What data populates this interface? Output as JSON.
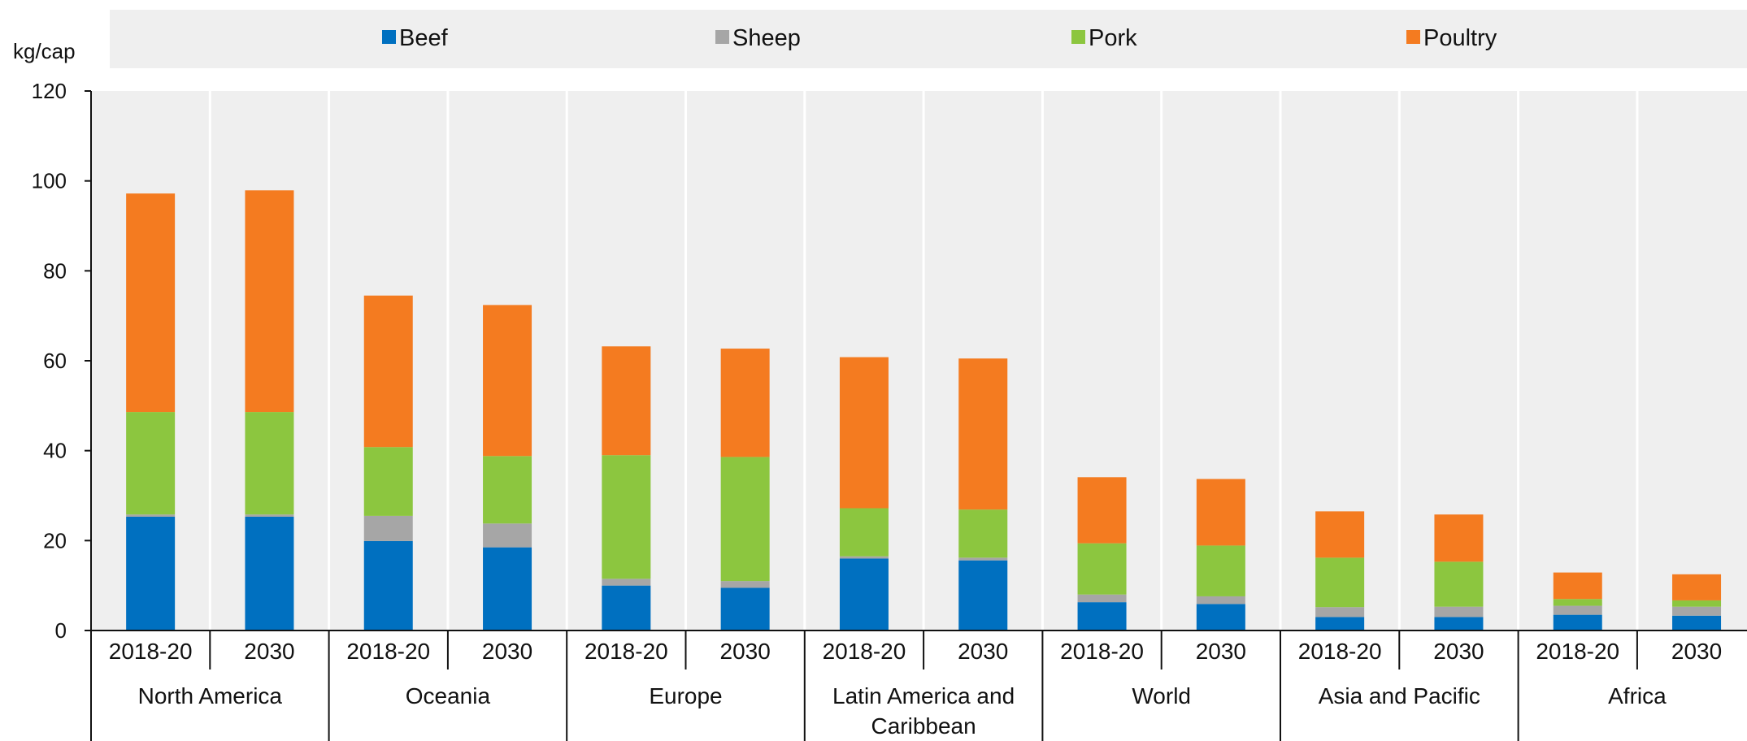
{
  "colors": {
    "Beef": "#0070c0",
    "Sheep": "#a6a6a6",
    "Pork": "#8cc63f",
    "Poultry": "#f47b20",
    "plot_bg": "#efefef",
    "legend_bg": "#efefef"
  },
  "chart_data": {
    "type": "bar",
    "stacked": true,
    "unit_label": "kg/cap",
    "ylim": [
      0,
      120
    ],
    "yticks": [
      0,
      20,
      40,
      60,
      80,
      100,
      120
    ],
    "legend_position": "top",
    "grid": "vertical separators only",
    "groups": [
      "North America",
      "Oceania",
      "Europe",
      "Latin America and Caribbean",
      "World",
      "Asia and Pacific",
      "Africa"
    ],
    "categories": [
      "2018-20",
      "2030",
      "2018-20",
      "2030",
      "2018-20",
      "2030",
      "2018-20",
      "2030",
      "2018-20",
      "2030",
      "2018-20",
      "2030",
      "2018-20",
      "2030"
    ],
    "series": [
      {
        "name": "Beef",
        "values": [
          25.3,
          25.3,
          19.9,
          18.5,
          10.0,
          9.5,
          16.0,
          15.6,
          6.3,
          5.9,
          3.0,
          3.0,
          3.5,
          3.3
        ]
      },
      {
        "name": "Sheep",
        "values": [
          0.5,
          0.5,
          5.6,
          5.3,
          1.5,
          1.5,
          0.5,
          0.6,
          1.7,
          1.7,
          2.2,
          2.3,
          2.0,
          2.0
        ]
      },
      {
        "name": "Pork",
        "values": [
          22.8,
          22.8,
          15.3,
          15.0,
          27.5,
          27.6,
          10.7,
          10.7,
          11.4,
          11.3,
          11.0,
          10.0,
          1.5,
          1.4
        ]
      },
      {
        "name": "Poultry",
        "values": [
          48.6,
          49.3,
          33.7,
          33.6,
          24.2,
          24.1,
          33.6,
          33.6,
          14.7,
          14.8,
          10.3,
          10.5,
          5.9,
          5.8
        ]
      }
    ]
  }
}
